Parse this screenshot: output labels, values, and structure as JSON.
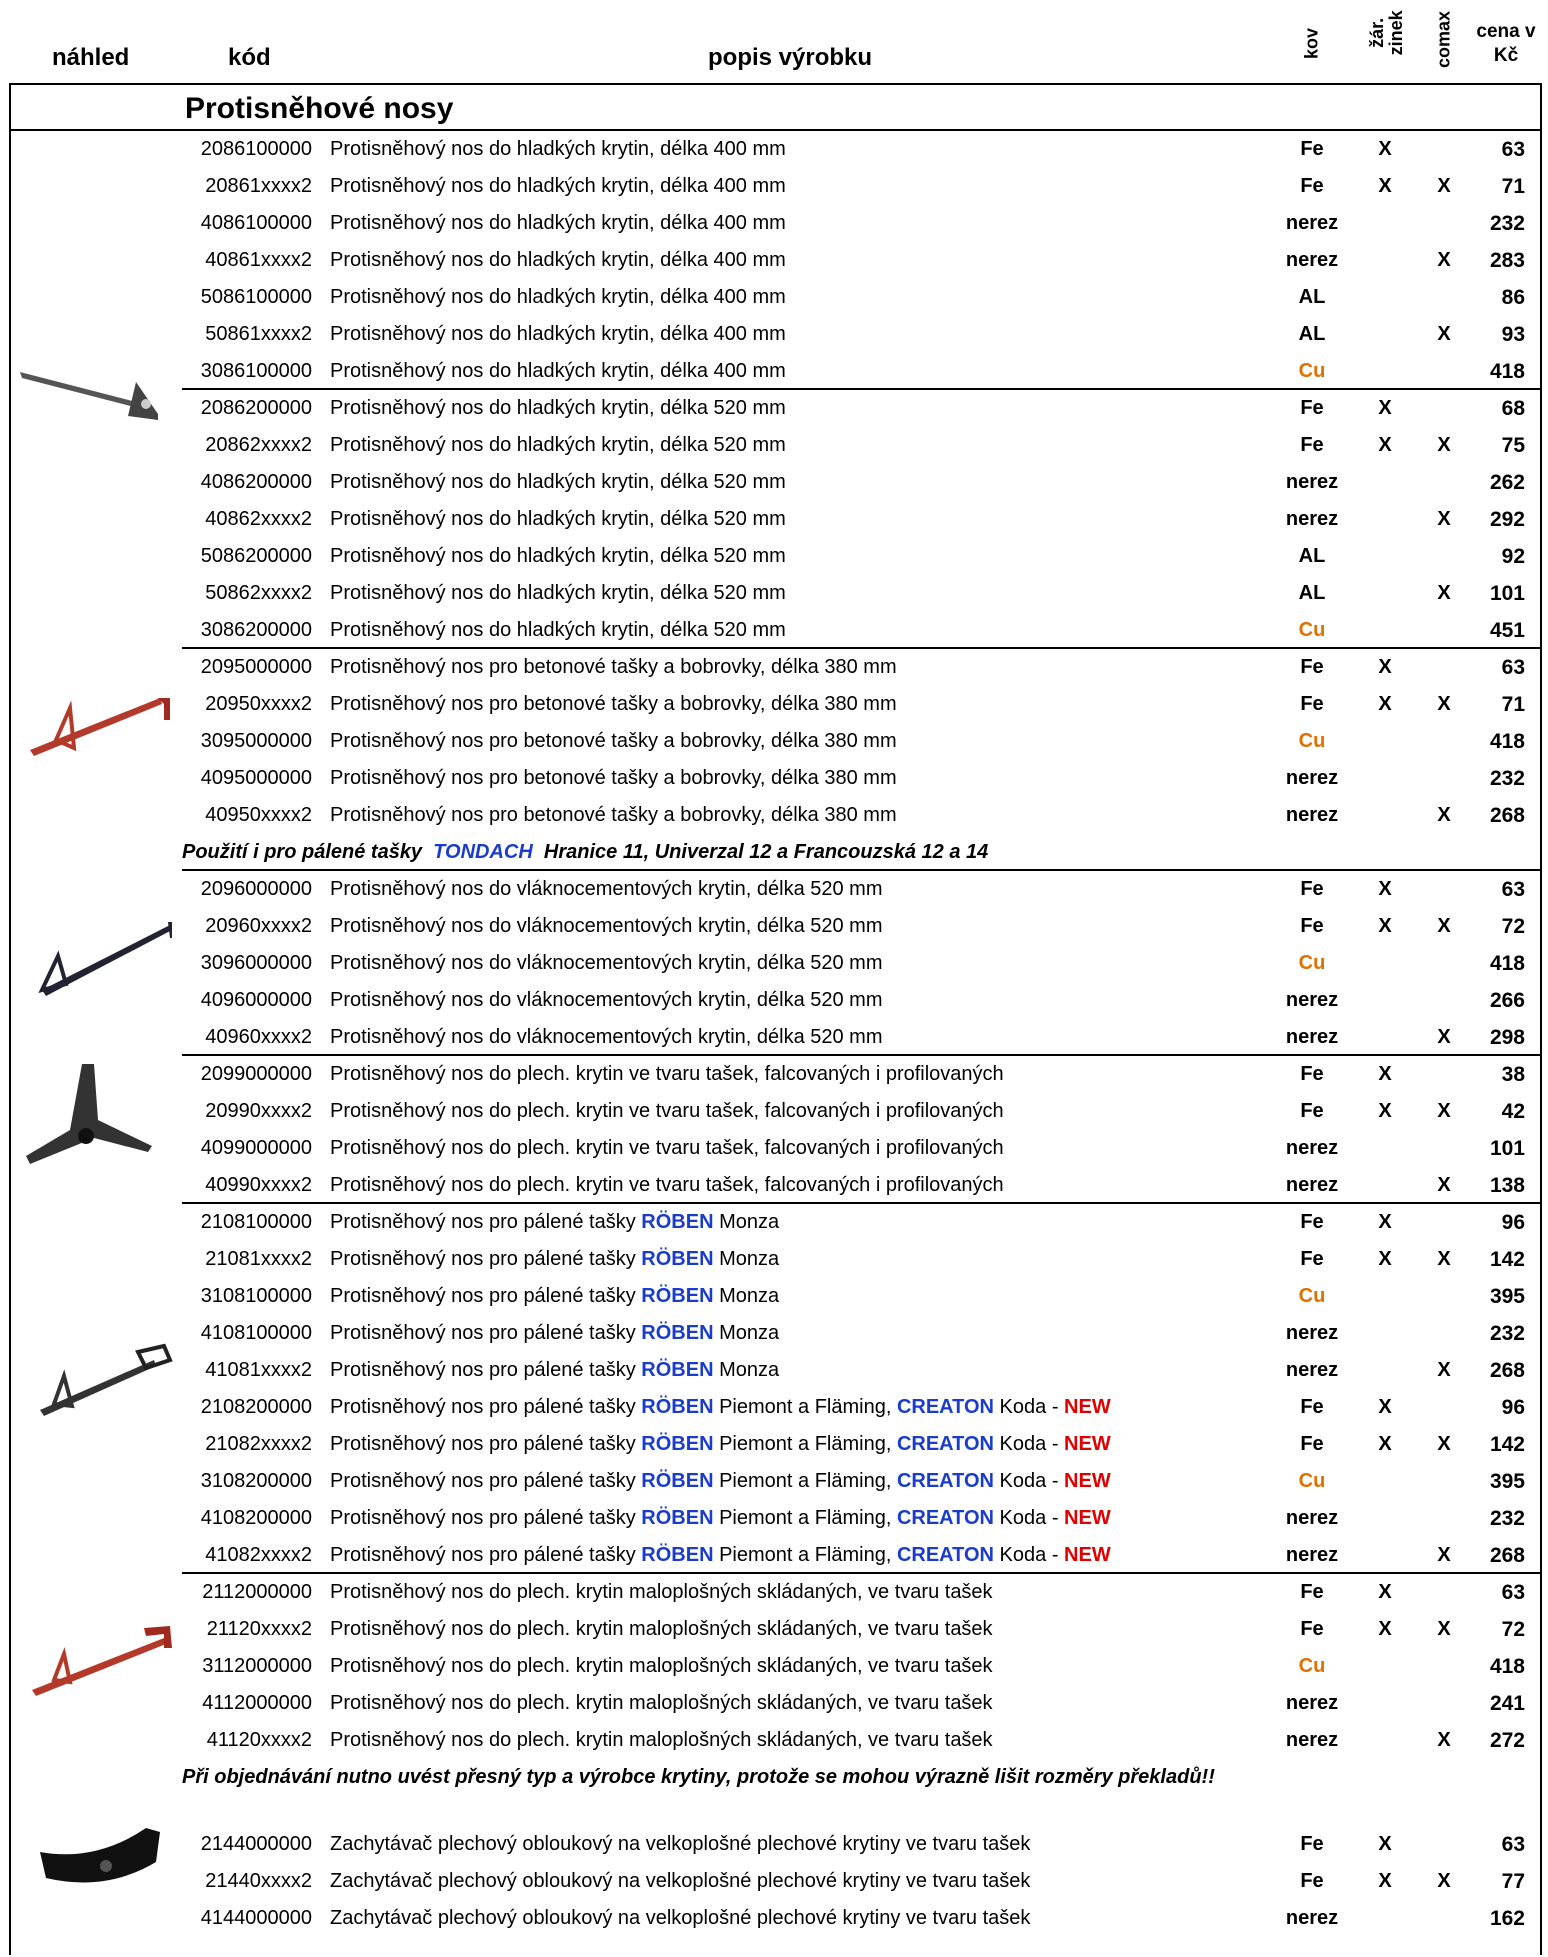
{
  "header": {
    "nahled": "náhled",
    "kod": "kód",
    "popis": "popis výrobku",
    "kov": "kov",
    "zinek": "žár. zinek",
    "comax": "comax",
    "cena": [
      "cena v",
      "Kč"
    ]
  },
  "section_title": "Protisněhové nosy",
  "kov_colors": {
    "Cu": "#e07000"
  },
  "items": [
    {
      "rows": [
        {
          "code": "2086100000",
          "desc": "Protisněhový nos do hladkých krytin, délka 400 mm",
          "kov": "Fe",
          "zinek": "X",
          "price": 63
        },
        {
          "code": "20861xxxx2",
          "desc": "Protisněhový nos do hladkých krytin, délka 400 mm",
          "kov": "Fe",
          "zinek": "X",
          "comax": "X",
          "price": 71
        },
        {
          "code": "4086100000",
          "desc": "Protisněhový nos do hladkých krytin, délka 400 mm",
          "kov": "nerez",
          "price": 232
        },
        {
          "code": "40861xxxx2",
          "desc": "Protisněhový nos do hladkých krytin, délka 400 mm",
          "kov": "nerez",
          "comax": "X",
          "price": 283
        },
        {
          "code": "5086100000",
          "desc": "Protisněhový nos do hladkých krytin, délka 400 mm",
          "kov": "AL",
          "price": 86
        },
        {
          "code": "50861xxxx2",
          "desc": "Protisněhový nos do hladkých krytin, délka 400 mm",
          "kov": "AL",
          "comax": "X",
          "price": 93
        },
        {
          "code": "3086100000",
          "desc": "Protisněhový nos do hladkých krytin, délka 400 mm",
          "kov": "Cu",
          "price": 418
        }
      ]
    },
    {
      "rows": [
        {
          "code": "2086200000",
          "desc": "Protisněhový nos do hladkých krytin, délka 520 mm",
          "kov": "Fe",
          "zinek": "X",
          "price": 68
        },
        {
          "code": "20862xxxx2",
          "desc": "Protisněhový nos do hladkých krytin, délka 520 mm",
          "kov": "Fe",
          "zinek": "X",
          "comax": "X",
          "price": 75
        },
        {
          "code": "4086200000",
          "desc": "Protisněhový nos do hladkých krytin, délka 520 mm",
          "kov": "nerez",
          "price": 262
        },
        {
          "code": "40862xxxx2",
          "desc": "Protisněhový nos do hladkých krytin, délka 520 mm",
          "kov": "nerez",
          "comax": "X",
          "price": 292
        },
        {
          "code": "5086200000",
          "desc": "Protisněhový nos do hladkých krytin, délka 520 mm",
          "kov": "AL",
          "price": 92
        },
        {
          "code": "50862xxxx2",
          "desc": "Protisněhový nos do hladkých krytin, délka 520 mm",
          "kov": "AL",
          "comax": "X",
          "price": 101
        },
        {
          "code": "3086200000",
          "desc": "Protisněhový nos do hladkých krytin, délka 520 mm",
          "kov": "Cu",
          "price": 451
        }
      ]
    },
    {
      "rows": [
        {
          "code": "2095000000",
          "desc": "Protisněhový nos pro betonové tašky a bobrovky, délka 380 mm",
          "kov": "Fe",
          "zinek": "X",
          "price": 63
        },
        {
          "code": "20950xxxx2",
          "desc": "Protisněhový nos pro betonové tašky a bobrovky, délka 380 mm",
          "kov": "Fe",
          "zinek": "X",
          "comax": "X",
          "price": 71
        },
        {
          "code": "3095000000",
          "desc": "Protisněhový nos pro betonové tašky a bobrovky, délka 380 mm",
          "kov": "Cu",
          "price": 418
        },
        {
          "code": "4095000000",
          "desc": "Protisněhový nos pro betonové tašky a bobrovky, délka 380 mm",
          "kov": "nerez",
          "price": 232
        },
        {
          "code": "40950xxxx2",
          "desc": "Protisněhový nos pro betonové tašky a bobrovky, délka 380 mm",
          "kov": "nerez",
          "comax": "X",
          "price": 268
        }
      ]
    },
    {
      "note": [
        "Použití i pro pálené tašky  ",
        {
          "text": "TONDACH",
          "color": "#1a3ccc"
        },
        "  Hranice 11, Univerzal 12 a Francouzská 12 a 14"
      ]
    },
    {
      "rows": [
        {
          "code": "2096000000",
          "desc": "Protisněhový nos do vláknocementových krytin, délka 520 mm",
          "kov": "Fe",
          "zinek": "X",
          "price": 63
        },
        {
          "code": "20960xxxx2",
          "desc": "Protisněhový nos do vláknocementových krytin, délka 520 mm",
          "kov": "Fe",
          "zinek": "X",
          "comax": "X",
          "price": 72
        },
        {
          "code": "3096000000",
          "desc": "Protisněhový nos do vláknocementových krytin, délka 520 mm",
          "kov": "Cu",
          "price": 418
        },
        {
          "code": "4096000000",
          "desc": "Protisněhový nos do vláknocementových krytin, délka 520 mm",
          "kov": "nerez",
          "price": 266
        },
        {
          "code": "40960xxxx2",
          "desc": "Protisněhový nos do vláknocementových krytin, délka 520 mm",
          "kov": "nerez",
          "comax": "X",
          "price": 298
        }
      ]
    },
    {
      "rows": [
        {
          "code": "2099000000",
          "desc": "Protisněhový nos do plech. krytin ve tvaru tašek, falcovaných i profilovaných",
          "kov": "Fe",
          "zinek": "X",
          "price": 38
        },
        {
          "code": "20990xxxx2",
          "desc": "Protisněhový nos do plech. krytin ve tvaru tašek, falcovaných i profilovaných",
          "kov": "Fe",
          "zinek": "X",
          "comax": "X",
          "price": 42
        },
        {
          "code": "4099000000",
          "desc": "Protisněhový nos do plech. krytin ve tvaru tašek, falcovaných i profilovaných",
          "kov": "nerez",
          "price": 101
        },
        {
          "code": "40990xxxx2",
          "desc": "Protisněhový nos do plech. krytin ve tvaru tašek, falcovaných i profilovaných",
          "kov": "nerez",
          "comax": "X",
          "price": 138
        }
      ]
    },
    {
      "rows": [
        {
          "code": "2108100000",
          "desc": [
            "Protisněhový nos pro pálené tašky ",
            {
              "text": "RÖBEN",
              "color": "#1a3ccc"
            },
            " Monza"
          ],
          "kov": "Fe",
          "zinek": "X",
          "price": 96
        },
        {
          "code": "21081xxxx2",
          "desc": [
            "Protisněhový nos pro pálené tašky ",
            {
              "text": "RÖBEN",
              "color": "#1a3ccc"
            },
            " Monza"
          ],
          "kov": "Fe",
          "zinek": "X",
          "comax": "X",
          "price": 142
        },
        {
          "code": "3108100000",
          "desc": [
            "Protisněhový nos pro pálené tašky ",
            {
              "text": "RÖBEN",
              "color": "#1a3ccc"
            },
            " Monza"
          ],
          "kov": "Cu",
          "price": 395
        },
        {
          "code": "4108100000",
          "desc": [
            "Protisněhový nos pro pálené tašky ",
            {
              "text": "RÖBEN",
              "color": "#1a3ccc"
            },
            " Monza"
          ],
          "kov": "nerez",
          "price": 232
        },
        {
          "code": "41081xxxx2",
          "desc": [
            "Protisněhový nos pro pálené tašky ",
            {
              "text": "RÖBEN",
              "color": "#1a3ccc"
            },
            " Monza"
          ],
          "kov": "nerez",
          "comax": "X",
          "price": 268
        },
        {
          "code": "2108200000",
          "desc": [
            "Protisněhový nos pro pálené tašky ",
            {
              "text": "RÖBEN",
              "color": "#1a3ccc"
            },
            " Piemont a Fläming, ",
            {
              "text": "CREATON",
              "color": "#1a3ccc"
            },
            " Koda - ",
            {
              "text": "NEW",
              "color": "#e00000"
            }
          ],
          "kov": "Fe",
          "zinek": "X",
          "price": 96
        },
        {
          "code": "21082xxxx2",
          "desc": [
            "Protisněhový nos pro pálené tašky ",
            {
              "text": "RÖBEN",
              "color": "#1a3ccc"
            },
            " Piemont a Fläming, ",
            {
              "text": "CREATON",
              "color": "#1a3ccc"
            },
            " Koda - ",
            {
              "text": "NEW",
              "color": "#e00000"
            }
          ],
          "kov": "Fe",
          "zinek": "X",
          "comax": "X",
          "price": 142
        },
        {
          "code": "3108200000",
          "desc": [
            "Protisněhový nos pro pálené tašky ",
            {
              "text": "RÖBEN",
              "color": "#1a3ccc"
            },
            " Piemont a Fläming, ",
            {
              "text": "CREATON",
              "color": "#1a3ccc"
            },
            " Koda - ",
            {
              "text": "NEW",
              "color": "#e00000"
            }
          ],
          "kov": "Cu",
          "price": 395
        },
        {
          "code": "4108200000",
          "desc": [
            "Protisněhový nos pro pálené tašky ",
            {
              "text": "RÖBEN",
              "color": "#1a3ccc"
            },
            " Piemont a Fläming, ",
            {
              "text": "CREATON",
              "color": "#1a3ccc"
            },
            " Koda - ",
            {
              "text": "NEW",
              "color": "#e00000"
            }
          ],
          "kov": "nerez",
          "price": 232
        },
        {
          "code": "41082xxxx2",
          "desc": [
            "Protisněhový nos pro pálené tašky ",
            {
              "text": "RÖBEN",
              "color": "#1a3ccc"
            },
            " Piemont a Fläming, ",
            {
              "text": "CREATON",
              "color": "#1a3ccc"
            },
            " Koda - ",
            {
              "text": "NEW",
              "color": "#e00000"
            }
          ],
          "kov": "nerez",
          "comax": "X",
          "price": 268
        }
      ]
    },
    {
      "rows": [
        {
          "code": "2112000000",
          "desc": "Protisněhový nos do plech. krytin maloplošných skládaných, ve tvaru tašek",
          "kov": "Fe",
          "zinek": "X",
          "price": 63
        },
        {
          "code": "21120xxxx2",
          "desc": "Protisněhový nos do plech. krytin maloplošných skládaných, ve tvaru tašek",
          "kov": "Fe",
          "zinek": "X",
          "comax": "X",
          "price": 72
        },
        {
          "code": "3112000000",
          "desc": "Protisněhový nos do plech. krytin maloplošných skládaných, ve tvaru tašek",
          "kov": "Cu",
          "price": 418
        },
        {
          "code": "4112000000",
          "desc": "Protisněhový nos do plech. krytin maloplošných skládaných, ve tvaru tašek",
          "kov": "nerez",
          "price": 241
        },
        {
          "code": "41120xxxx2",
          "desc": "Protisněhový nos do plech. krytin maloplošných skládaných, ve tvaru tašek",
          "kov": "nerez",
          "comax": "X",
          "price": 272
        }
      ]
    },
    {
      "note": [
        "Při objednávání nutno uvést přesný typ a výrobce krytiny, protože se mohou výrazně lišit rozměry překladů!!"
      ]
    },
    {
      "rows": [
        {
          "code": "2144000000",
          "desc": "Zachytávač plechový obloukový na velkoplošné plechové krytiny ve tvaru tašek",
          "kov": "Fe",
          "zinek": "X",
          "price": 63
        },
        {
          "code": "21440xxxx2",
          "desc": "Zachytávač plechový obloukový na velkoplošné plechové krytiny ve tvaru tašek",
          "kov": "Fe",
          "zinek": "X",
          "comax": "X",
          "price": 77
        },
        {
          "code": "4144000000",
          "desc": "Zachytávač plechový obloukový na velkoplošné plechové krytiny ve tvaru tašek",
          "kov": "nerez",
          "price": 162
        }
      ]
    }
  ]
}
